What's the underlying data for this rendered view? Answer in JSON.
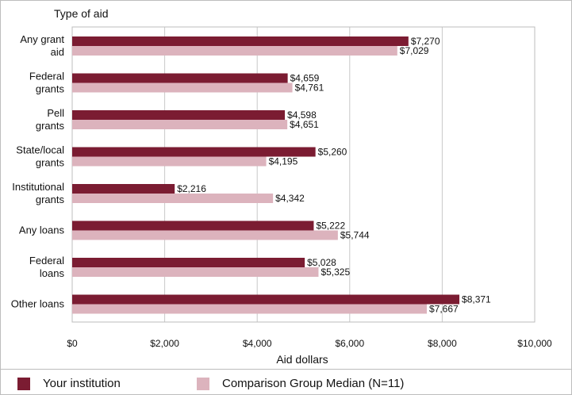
{
  "chart_data": {
    "type": "bar",
    "orientation": "horizontal",
    "y_title": "Type of aid",
    "xlabel": "Aid dollars",
    "xlim": [
      0,
      10000
    ],
    "x_ticks": [
      "$0",
      "$2,000",
      "$4,000",
      "$6,000",
      "$8,000",
      "$10,000"
    ],
    "x_tick_values": [
      0,
      2000,
      4000,
      6000,
      8000,
      10000
    ],
    "categories": [
      [
        "Any grant",
        "aid"
      ],
      [
        "Federal",
        "grants"
      ],
      [
        "Pell",
        "grants"
      ],
      [
        "State/local",
        "grants"
      ],
      [
        "Institutional",
        "grants"
      ],
      [
        "Any loans"
      ],
      [
        "Federal",
        "loans"
      ],
      [
        "Other loans"
      ]
    ],
    "series": [
      {
        "name": "Your institution",
        "color": "#7b1c32",
        "values": [
          7270,
          4659,
          4598,
          5260,
          2216,
          5222,
          5028,
          8371
        ],
        "labels": [
          "$7,270",
          "$4,659",
          "$4,598",
          "$5,260",
          "$2,216",
          "$5,222",
          "$5,028",
          "$8,371"
        ]
      },
      {
        "name": "Comparison Group Median (N=11)",
        "color": "#dcb3bd",
        "values": [
          7029,
          4761,
          4651,
          4195,
          4342,
          5744,
          5325,
          7667
        ],
        "labels": [
          "$7,029",
          "$4,761",
          "$4,651",
          "$4,195",
          "$4,342",
          "$5,744",
          "$5,325",
          "$7,667"
        ]
      }
    ],
    "grid": true,
    "legend_position": "bottom"
  },
  "legend": {
    "items": [
      {
        "label": "Your institution",
        "color": "#7b1c32"
      },
      {
        "label": "Comparison Group Median (N=11)",
        "color": "#dcb3bd"
      }
    ]
  }
}
